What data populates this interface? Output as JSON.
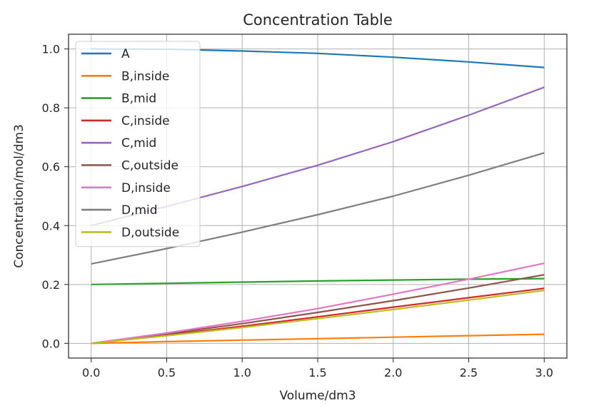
{
  "chart_data": {
    "type": "line",
    "title": "Concentration Table",
    "xlabel": "Volume/dm3",
    "ylabel": "Concentration/mol/dm3",
    "xlim": [
      -0.15,
      3.15
    ],
    "ylim": [
      -0.05,
      1.05
    ],
    "xticks": [
      0.0,
      0.5,
      1.0,
      1.5,
      2.0,
      2.5,
      3.0
    ],
    "xtick_labels": [
      "0.0",
      "0.5",
      "1.0",
      "1.5",
      "2.0",
      "2.5",
      "3.0"
    ],
    "yticks": [
      0.0,
      0.2,
      0.4,
      0.6,
      0.8,
      1.0
    ],
    "ytick_labels": [
      "0.0",
      "0.2",
      "0.4",
      "0.6",
      "0.8",
      "1.0"
    ],
    "grid": true,
    "legend_position": "upper-left",
    "x": [
      0.0,
      0.5,
      1.0,
      1.5,
      2.0,
      2.5,
      3.0
    ],
    "series": [
      {
        "name": "A",
        "color": "#1f77b4",
        "values": [
          1.0,
          0.999,
          0.993,
          0.985,
          0.972,
          0.956,
          0.937
        ]
      },
      {
        "name": "B,inside",
        "color": "#ff7f0e",
        "values": [
          0.0,
          0.006,
          0.011,
          0.016,
          0.021,
          0.026,
          0.031
        ]
      },
      {
        "name": "B,mid",
        "color": "#2ca02c",
        "values": [
          0.2,
          0.204,
          0.208,
          0.212,
          0.215,
          0.218,
          0.22
        ]
      },
      {
        "name": "C,inside",
        "color": "#d62728",
        "values": [
          0.0,
          0.028,
          0.058,
          0.09,
          0.123,
          0.155,
          0.187
        ]
      },
      {
        "name": "C,mid",
        "color": "#9467bd",
        "values": [
          0.4,
          0.465,
          0.533,
          0.605,
          0.685,
          0.775,
          0.87
        ]
      },
      {
        "name": "C,outside",
        "color": "#8c564b",
        "values": [
          0.0,
          0.032,
          0.067,
          0.105,
          0.145,
          0.188,
          0.233
        ]
      },
      {
        "name": "D,inside",
        "color": "#e377c2",
        "values": [
          0.0,
          0.035,
          0.075,
          0.118,
          0.167,
          0.218,
          0.272
        ]
      },
      {
        "name": "D,mid",
        "color": "#7f7f7f",
        "values": [
          0.27,
          0.322,
          0.378,
          0.437,
          0.5,
          0.571,
          0.647
        ]
      },
      {
        "name": "D,outside",
        "color": "#bcbd22",
        "values": [
          0.0,
          0.026,
          0.054,
          0.084,
          0.115,
          0.147,
          0.18
        ]
      }
    ]
  }
}
